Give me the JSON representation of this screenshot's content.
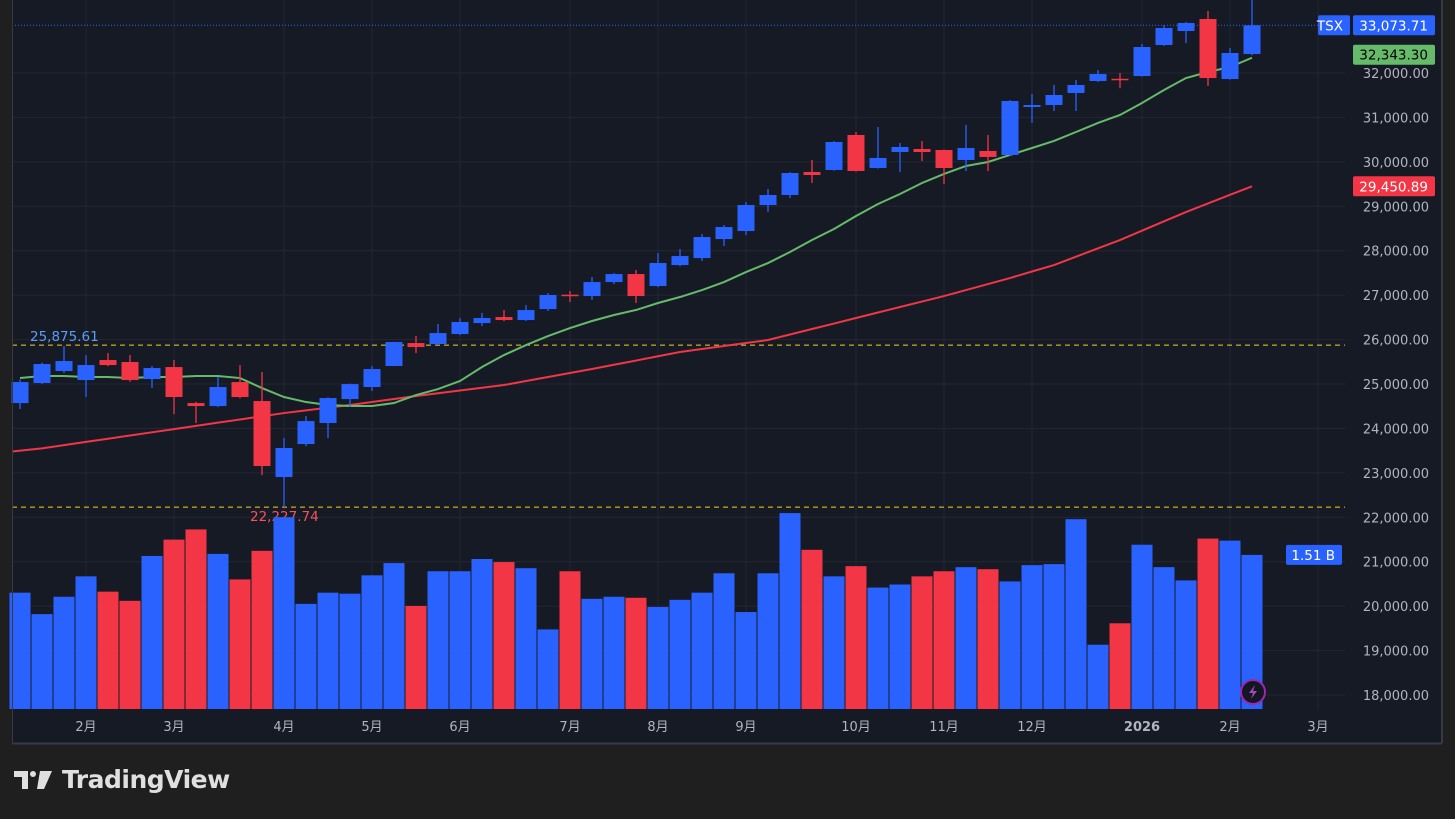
{
  "symbol": "TSX",
  "brand": "TradingView",
  "colors": {
    "up": "#2962ff",
    "down": "#f23645",
    "ma_fast": "#66bb6a",
    "ma_slow": "#f23645",
    "level_line": "#f5d21b",
    "background": "#161a25",
    "grid": "#232733"
  },
  "badges": {
    "last_price": "33,073.71",
    "ma_fast": "32,343.30",
    "ma_slow": "29,450.89",
    "volume": "1.51 B"
  },
  "levels": [
    {
      "value": 25875.61,
      "label": "25,875.61",
      "color": "#5b9cf6"
    },
    {
      "value": 22227.74,
      "label": "22,227.74",
      "color": "#f7525f"
    }
  ],
  "chart_data": {
    "type": "candlestick",
    "interval": "weekly",
    "last_price": 33073.71,
    "ylim": [
      17700,
      33700
    ],
    "y_ticks": [
      18000,
      19000,
      20000,
      21000,
      22000,
      23000,
      24000,
      25000,
      26000,
      27000,
      28000,
      29000,
      30000,
      31000,
      32000
    ],
    "y_tick_labels": [
      "18,000.00",
      "19,000.00",
      "20,000.00",
      "21,000.00",
      "22,000.00",
      "23,000.00",
      "24,000.00",
      "25,000.00",
      "26,000.00",
      "27,000.00",
      "28,000.00",
      "29,000.00",
      "30,000.00",
      "31,000.00",
      "32,000.00"
    ],
    "x_ticks": [
      {
        "label": "2月",
        "bar": 3
      },
      {
        "label": "3月",
        "bar": 7
      },
      {
        "label": "4月",
        "bar": 12
      },
      {
        "label": "5月",
        "bar": 16
      },
      {
        "label": "6月",
        "bar": 20
      },
      {
        "label": "7月",
        "bar": 25
      },
      {
        "label": "8月",
        "bar": 29
      },
      {
        "label": "9月",
        "bar": 33
      },
      {
        "label": "10月",
        "bar": 38
      },
      {
        "label": "11月",
        "bar": 42
      },
      {
        "label": "12月",
        "bar": 46
      },
      {
        "label": "2026",
        "bar": 51,
        "bold": true
      },
      {
        "label": "2月",
        "bar": 55
      },
      {
        "label": "3月",
        "bar": 59
      }
    ],
    "grid": true,
    "ohlc": [
      [
        24571,
        25100,
        24437,
        25044
      ],
      [
        25022,
        25480,
        25000,
        25450
      ],
      [
        25292,
        25855,
        25250,
        25517
      ],
      [
        25089,
        25652,
        24707,
        25427
      ],
      [
        25540,
        25697,
        25400,
        25427
      ],
      [
        25495,
        25652,
        25050,
        25089
      ],
      [
        25112,
        25405,
        24910,
        25360
      ],
      [
        25382,
        25540,
        24324,
        24707
      ],
      [
        24571,
        24600,
        24122,
        24504
      ],
      [
        24504,
        25157,
        24480,
        24932
      ],
      [
        25044,
        25427,
        24680,
        24707
      ],
      [
        24617,
        25269,
        22950,
        23154
      ],
      [
        22906,
        23784,
        22227.74,
        23560
      ],
      [
        23649,
        24279,
        23600,
        24166
      ],
      [
        24122,
        24700,
        23784,
        24684
      ],
      [
        24662,
        25010,
        24482,
        24999
      ],
      [
        24932,
        25405,
        24842,
        25337
      ],
      [
        25405,
        25950,
        25400,
        25945
      ],
      [
        25922,
        26080,
        25697,
        25832
      ],
      [
        25900,
        26350,
        25880,
        26147
      ],
      [
        26125,
        26485,
        26100,
        26395
      ],
      [
        26372,
        26598,
        26305,
        26485
      ],
      [
        26507,
        26665,
        26417,
        26440
      ],
      [
        26440,
        26777,
        26420,
        26665
      ],
      [
        26687,
        27048,
        26642,
        27003
      ],
      [
        27010,
        27093,
        26845,
        26990
      ],
      [
        26980,
        27408,
        26890,
        27295
      ],
      [
        27295,
        27498,
        27250,
        27475
      ],
      [
        27475,
        27565,
        26823,
        26980
      ],
      [
        27205,
        27948,
        27180,
        27723
      ],
      [
        27678,
        28038,
        27650,
        27880
      ],
      [
        27835,
        28376,
        27768,
        28308
      ],
      [
        28263,
        28578,
        28105,
        28533
      ],
      [
        28443,
        29096,
        28353,
        29029
      ],
      [
        29029,
        29389,
        28871,
        29254
      ],
      [
        29254,
        29772,
        29186,
        29749
      ],
      [
        29772,
        30042,
        29524,
        29704
      ],
      [
        29817,
        30470,
        29800,
        30447
      ],
      [
        30605,
        30672,
        29780,
        29795
      ],
      [
        29862,
        30785,
        29850,
        30087
      ],
      [
        30222,
        30425,
        29772,
        30335
      ],
      [
        30290,
        30470,
        30020,
        30222
      ],
      [
        30267,
        30280,
        29500,
        29862
      ],
      [
        30042,
        30830,
        29794,
        30312
      ],
      [
        30245,
        30605,
        29794,
        30110
      ],
      [
        30155,
        31392,
        30140,
        31370
      ],
      [
        31235,
        31527,
        30875,
        31280
      ],
      [
        31280,
        31730,
        31145,
        31505
      ],
      [
        31550,
        31842,
        31145,
        31730
      ],
      [
        31820,
        32067,
        31797,
        31977
      ],
      [
        31870,
        32000,
        31660,
        31860
      ],
      [
        31932,
        32653,
        31920,
        32585
      ],
      [
        32630,
        33080,
        32610,
        33013
      ],
      [
        32945,
        33150,
        32675,
        33125
      ],
      [
        33215,
        33395,
        31707,
        31887
      ],
      [
        31865,
        32563,
        31850,
        32450
      ],
      [
        32428,
        33643,
        32400,
        33073.71
      ]
    ],
    "volume_billions": [
      1.14,
      0.93,
      1.1,
      1.3,
      1.15,
      1.06,
      1.5,
      1.66,
      1.76,
      1.52,
      1.27,
      1.55,
      1.88,
      1.03,
      1.14,
      1.13,
      1.31,
      1.43,
      1.01,
      1.35,
      1.35,
      1.47,
      1.44,
      1.38,
      0.78,
      1.35,
      1.08,
      1.1,
      1.09,
      1.0,
      1.07,
      1.14,
      1.33,
      0.95,
      1.33,
      1.92,
      1.56,
      1.3,
      1.4,
      1.19,
      1.22,
      1.3,
      1.35,
      1.39,
      1.37,
      1.25,
      1.41,
      1.42,
      1.86,
      0.63,
      0.84,
      1.61,
      1.39,
      1.26,
      1.67,
      1.65,
      1.51
    ],
    "ma_fast": [
      25134,
      25180,
      25180,
      25157,
      25157,
      25134,
      25157,
      25157,
      25180,
      25180,
      25134,
      24909,
      24707,
      24594,
      24527,
      24504,
      24504,
      24572,
      24752,
      24887,
      25067,
      25382,
      25652,
      25877,
      26080,
      26260,
      26418,
      26553,
      26665,
      26823,
      26958,
      27115,
      27295,
      27520,
      27723,
      27971,
      28241,
      28488,
      28781,
      29051,
      29276,
      29524,
      29727,
      29907,
      29997,
      30155,
      30312,
      30470,
      30672,
      30875,
      31055,
      31325,
      31617,
      31887,
      32022,
      32135,
      32343.3
    ],
    "ma_slow": [
      23480,
      23552,
      23624,
      23697,
      23769,
      23841,
      23913,
      23985,
      24057,
      24130,
      24202,
      24274,
      24346,
      24406,
      24467,
      24527,
      24595,
      24662,
      24730,
      24792,
      24854,
      24915,
      24977,
      25067,
      25157,
      25247,
      25337,
      25433,
      25528,
      25624,
      25720,
      25788,
      25855,
      25923,
      25990,
      26114,
      26238,
      26361,
      26485,
      26609,
      26733,
      26856,
      26980,
      27115,
      27250,
      27385,
      27532,
      27678,
      27866,
      28053,
      28241,
      28451,
      28661,
      28871,
      29064,
      29258,
      29450.89
    ]
  }
}
